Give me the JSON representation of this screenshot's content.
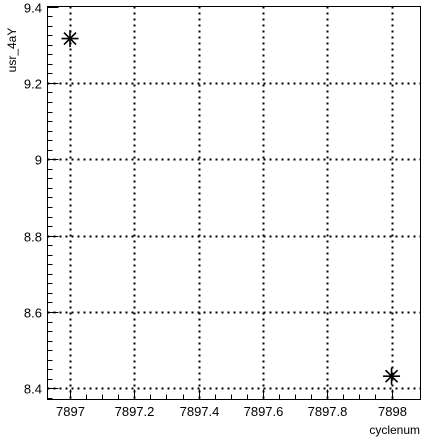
{
  "chart_data": {
    "type": "scatter",
    "title": "",
    "xlabel": "cyclenum",
    "ylabel": "usr_4aY",
    "xlim": [
      7896.93,
      7898.09
    ],
    "ylim": [
      8.371,
      9.4
    ],
    "xticks": [
      7897,
      7897.2,
      7897.4,
      7897.6,
      7897.8,
      7898
    ],
    "xtick_labels": [
      "7897",
      "7897.2",
      "7897.4",
      "7897.6",
      "7897.8",
      "7898"
    ],
    "yticks": [
      8.4,
      8.6,
      8.8,
      9,
      9.2,
      9.4
    ],
    "ytick_labels": [
      "8.4",
      "8.6",
      "8.8",
      "9",
      "9.2",
      "9.4"
    ],
    "grid": true,
    "marker": "asterisk",
    "series": [
      {
        "x": [
          7897,
          7898
        ],
        "y": [
          9.316,
          8.432
        ]
      }
    ]
  }
}
